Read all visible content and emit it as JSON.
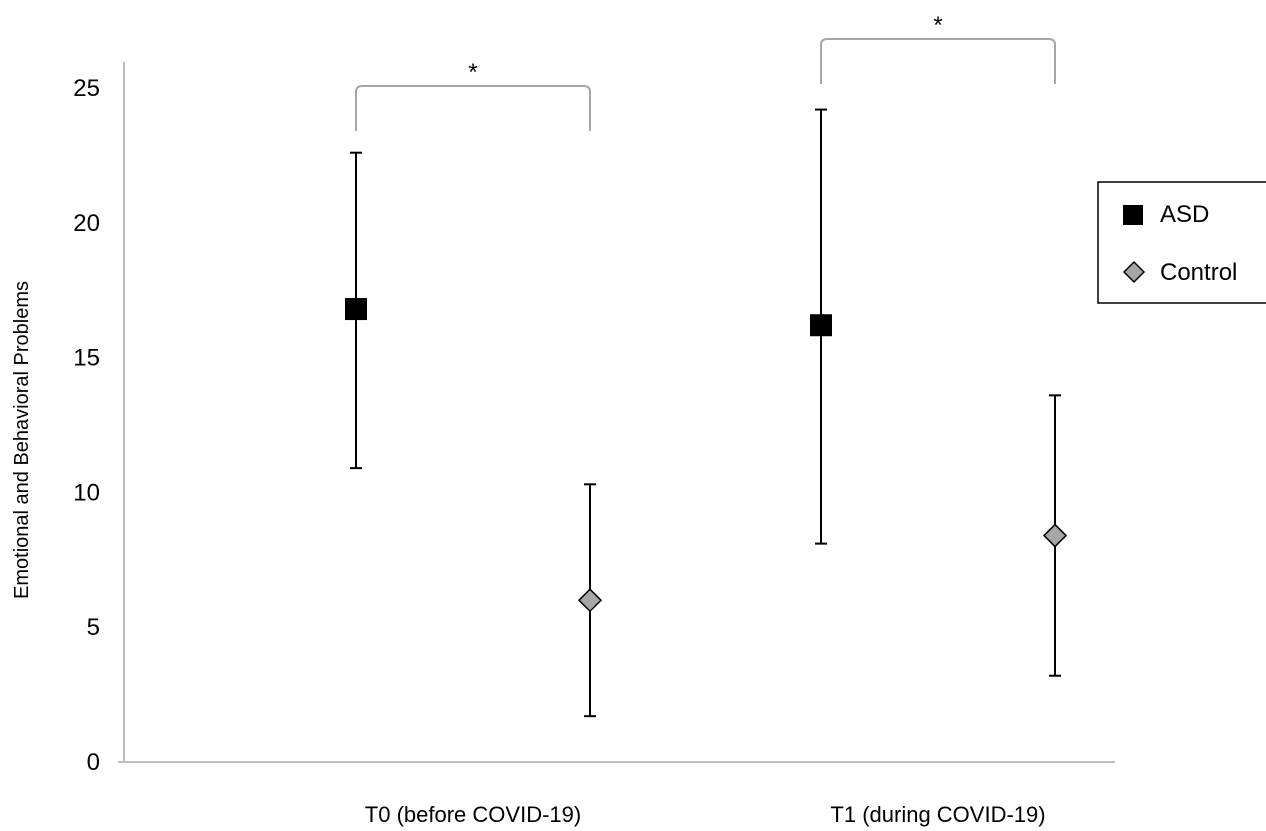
{
  "chart_data": {
    "type": "scatter",
    "title": "",
    "xlabel": "",
    "ylabel": "Emotional and Behavioral Problems",
    "ylim": [
      0,
      25
    ],
    "yticks": [
      "0",
      "5",
      "10",
      "15",
      "20",
      "25"
    ],
    "categories": [
      "T0 (before COVID-19)",
      "T1 (during COVID-19)"
    ],
    "grid": false,
    "legend_position": "right",
    "series": [
      {
        "name": "ASD",
        "marker": "square",
        "color": "#000000",
        "values": [
          16.8,
          16.2
        ],
        "error_low": [
          10.9,
          8.1
        ],
        "error_high": [
          22.6,
          24.2
        ]
      },
      {
        "name": "Control",
        "marker": "diamond",
        "color": "#a6a6a6",
        "values": [
          6.0,
          8.4
        ],
        "error_low": [
          1.7,
          3.2
        ],
        "error_high": [
          10.3,
          13.6
        ]
      }
    ],
    "annotations": [
      {
        "category_index": 0,
        "text": "*"
      },
      {
        "category_index": 1,
        "text": "*"
      }
    ]
  }
}
